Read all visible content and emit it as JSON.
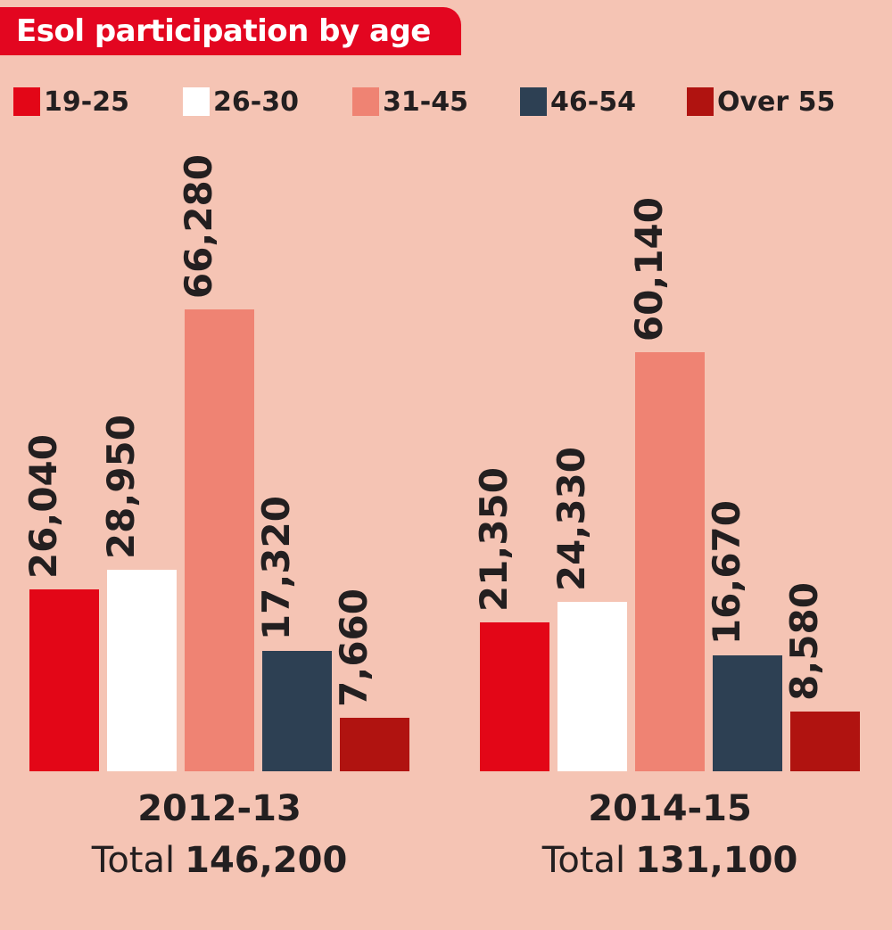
{
  "title": "Esol participation by age",
  "labels": {
    "total_prefix": "Total"
  },
  "colors": {
    "background": "#f5c4b4",
    "banner": "#e30620",
    "text": "#231f20",
    "title_text": "#ffffff"
  },
  "chart_data": {
    "type": "bar",
    "title": "Esol participation by age",
    "categories": [
      "2012-13",
      "2014-15"
    ],
    "series": [
      {
        "name": "19-25",
        "color": "#e30617",
        "values": [
          26040,
          21350
        ]
      },
      {
        "name": "26-30",
        "color": "#ffffff",
        "values": [
          28950,
          24330
        ]
      },
      {
        "name": "31-45",
        "color": "#ef8373",
        "values": [
          66280,
          60140
        ]
      },
      {
        "name": "46-54",
        "color": "#2d4053",
        "values": [
          17320,
          16670
        ]
      },
      {
        "name": "Over 55",
        "color": "#b01310",
        "values": [
          7660,
          8580
        ]
      }
    ],
    "value_labels": [
      [
        "26,040",
        "28,950",
        "66,280",
        "17,320",
        "7,660"
      ],
      [
        "21,350",
        "24,330",
        "60,140",
        "16,670",
        "8,580"
      ]
    ],
    "totals": [
      "146,200",
      "131,100"
    ],
    "ylim": [
      0,
      66280
    ],
    "grid": false,
    "legend_position": "top"
  }
}
